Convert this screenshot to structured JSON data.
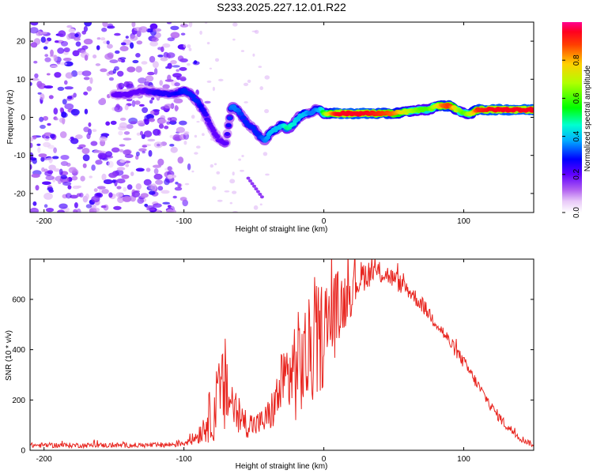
{
  "figure_title": "S233.2025.227.12.01.R22",
  "colors": {
    "snr_line": "#e8251f",
    "ridge_hot": "#e8001c",
    "ridge_cool": "#6a00ff",
    "noise": "#9a3de0"
  },
  "chart_data": [
    {
      "type": "heatmap",
      "title": "",
      "xlabel": "Height of straight line (km)",
      "ylabel": "Frequency (Hz)",
      "xlim": [
        -210,
        150
      ],
      "ylim": [
        -25,
        25
      ],
      "x_ticks": [
        -200,
        -100,
        0,
        100
      ],
      "y_ticks": [
        -20,
        -10,
        0,
        10,
        20
      ],
      "colorbar": {
        "label": "Normalized spectral amplitude",
        "range": [
          0,
          1
        ],
        "ticks": [
          0.0,
          0.2,
          0.4,
          0.6,
          0.8
        ]
      },
      "ridge": {
        "x": [
          -150,
          -140,
          -130,
          -120,
          -110,
          -100,
          -95,
          -90,
          -85,
          -80,
          -75,
          -70,
          -66,
          -62,
          -58,
          -54,
          -50,
          -46,
          -42,
          -38,
          -34,
          -30,
          -26,
          -22,
          -18,
          -14,
          -10,
          -6,
          -2,
          0,
          5,
          10,
          20,
          30,
          40,
          50,
          60,
          70,
          75,
          80,
          85,
          90,
          95,
          100,
          105,
          110,
          120,
          130,
          140,
          150
        ],
        "y": [
          6,
          6,
          7,
          6.5,
          6,
          7,
          6,
          4,
          1,
          -3,
          -6,
          -7,
          3,
          2,
          0,
          -2,
          -3,
          -5,
          -6,
          -4,
          -3,
          -2,
          -3,
          -2,
          0,
          1,
          1,
          2,
          2,
          1,
          1,
          1,
          1,
          1,
          1,
          1,
          1.5,
          2,
          2,
          3,
          3,
          3,
          2,
          1,
          1,
          2,
          2,
          2,
          2,
          2
        ],
        "amplitude": [
          0.2,
          0.2,
          0.2,
          0.25,
          0.25,
          0.3,
          0.3,
          0.3,
          0.25,
          0.2,
          0.2,
          0.2,
          0.35,
          0.35,
          0.3,
          0.3,
          0.3,
          0.3,
          0.35,
          0.4,
          0.4,
          0.4,
          0.5,
          0.45,
          0.4,
          0.4,
          0.35,
          0.35,
          0.4,
          0.6,
          0.8,
          0.95,
          0.95,
          0.95,
          0.9,
          0.85,
          0.7,
          0.6,
          0.6,
          0.7,
          0.85,
          0.9,
          0.7,
          0.6,
          0.7,
          0.9,
          0.95,
          0.95,
          0.95,
          0.95
        ]
      },
      "noise_region": {
        "x_range": [
          -210,
          -100
        ],
        "y_range": [
          -25,
          25
        ],
        "amplitude_range": [
          0.05,
          0.25
        ]
      }
    },
    {
      "type": "line",
      "title": "",
      "xlabel": "Height of straight line (km)",
      "ylabel": "SNR (10 * v/v)",
      "xlim": [
        -210,
        150
      ],
      "ylim": [
        0,
        760
      ],
      "x_ticks": [
        -200,
        -100,
        0,
        100
      ],
      "y_ticks": [
        0,
        200,
        400,
        600
      ],
      "series": [
        {
          "name": "SNR",
          "x": [
            -210,
            -190,
            -170,
            -150,
            -130,
            -120,
            -110,
            -100,
            -95,
            -90,
            -85,
            -80,
            -75,
            -70,
            -65,
            -60,
            -55,
            -50,
            -45,
            -40,
            -35,
            -30,
            -25,
            -20,
            -15,
            -10,
            -5,
            0,
            5,
            10,
            15,
            20,
            25,
            30,
            35,
            40,
            45,
            50,
            55,
            60,
            70,
            80,
            90,
            100,
            110,
            120,
            130,
            140,
            150
          ],
          "value": [
            20,
            20,
            20,
            20,
            20,
            20,
            22,
            30,
            40,
            60,
            100,
            150,
            200,
            250,
            180,
            120,
            110,
            100,
            110,
            130,
            180,
            260,
            300,
            330,
            350,
            380,
            430,
            470,
            520,
            560,
            600,
            640,
            680,
            700,
            710,
            705,
            700,
            680,
            660,
            640,
            580,
            510,
            430,
            350,
            260,
            170,
            100,
            50,
            20
          ],
          "noise_amp": [
            10,
            10,
            10,
            10,
            10,
            10,
            12,
            15,
            20,
            35,
            70,
            120,
            160,
            210,
            110,
            70,
            60,
            50,
            50,
            70,
            90,
            140,
            180,
            220,
            220,
            230,
            230,
            220,
            200,
            160,
            120,
            100,
            70,
            60,
            50,
            45,
            40,
            40,
            38,
            35,
            32,
            30,
            28,
            26,
            24,
            22,
            20,
            15,
            10
          ]
        }
      ]
    }
  ]
}
